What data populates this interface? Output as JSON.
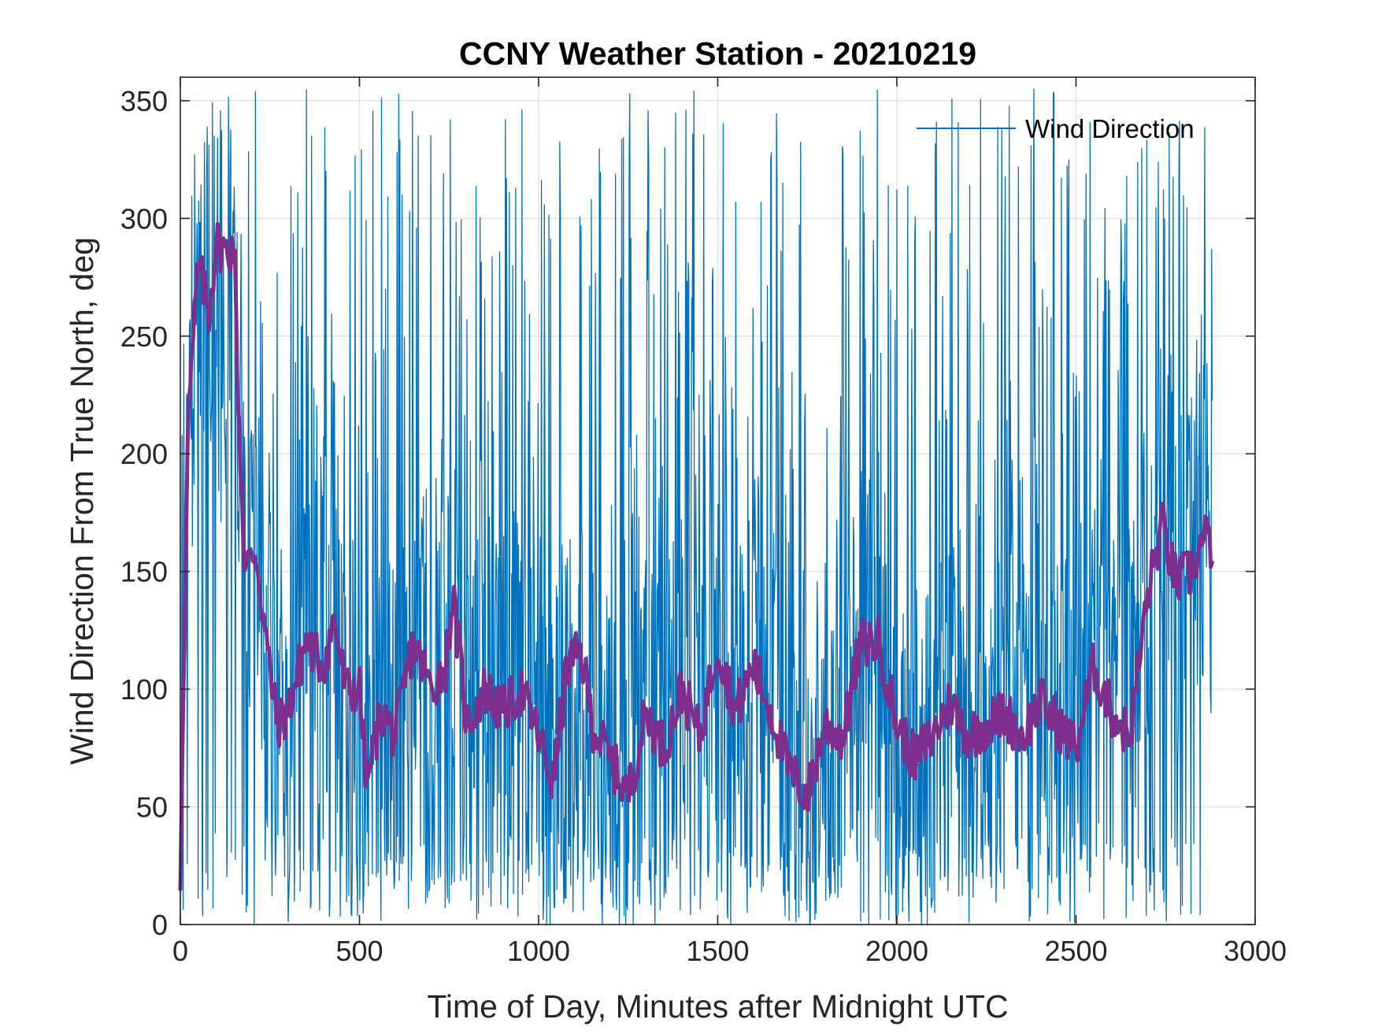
{
  "chart_data": {
    "type": "line",
    "title": "CCNY Weather Station - 20210219",
    "xlabel": "Time of Day, Minutes after Midnight UTC",
    "ylabel": "Wind Direction From True North, deg",
    "xlim": [
      0,
      3000
    ],
    "ylim": [
      0,
      360
    ],
    "xticks": [
      0,
      500,
      1000,
      1500,
      2000,
      2500,
      3000
    ],
    "yticks": [
      0,
      50,
      100,
      150,
      200,
      250,
      300,
      350
    ],
    "grid": true,
    "legend": {
      "entries": [
        "Wind Direction"
      ],
      "location": "top-right"
    },
    "series": [
      {
        "name": "Wind Direction",
        "color": "#0072BD",
        "style": "thin noisy line, approx. 1-minute samples from 0 to ~2880 minutes, oscillating roughly between 0 and 355 deg",
        "x_range": [
          0,
          2880
        ],
        "value_range": [
          0,
          355
        ]
      },
      {
        "name": "Running mean (no legend entry)",
        "color": "#7E2F8E",
        "style": "thick line",
        "x": [
          0,
          20,
          50,
          80,
          100,
          130,
          150,
          160,
          180,
          210,
          240,
          270,
          300,
          350,
          400,
          430,
          460,
          500,
          520,
          560,
          600,
          650,
          700,
          740,
          760,
          800,
          850,
          900,
          950,
          1000,
          1040,
          1080,
          1120,
          1150,
          1200,
          1250,
          1300,
          1350,
          1400,
          1450,
          1500,
          1550,
          1600,
          1650,
          1700,
          1750,
          1800,
          1850,
          1900,
          1950,
          2000,
          2050,
          2100,
          2150,
          2200,
          2250,
          2300,
          2350,
          2400,
          2450,
          2500,
          2550,
          2600,
          2650,
          2700,
          2740,
          2780,
          2820,
          2860,
          2880
        ],
        "values": [
          15,
          210,
          280,
          260,
          290,
          285,
          290,
          230,
          150,
          160,
          120,
          85,
          90,
          120,
          110,
          130,
          100,
          100,
          60,
          90,
          80,
          120,
          100,
          110,
          140,
          85,
          100,
          90,
          100,
          80,
          60,
          110,
          115,
          85,
          70,
          55,
          90,
          75,
          100,
          80,
          120,
          90,
          110,
          90,
          65,
          55,
          85,
          80,
          120,
          120,
          85,
          70,
          80,
          95,
          80,
          85,
          90,
          80,
          95,
          85,
          75,
          110,
          90,
          80,
          140,
          170,
          145,
          150,
          165,
          160
        ]
      }
    ]
  }
}
